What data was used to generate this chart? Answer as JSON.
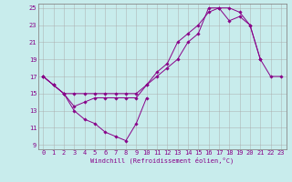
{
  "xlabel": "Windchill (Refroidissement éolien,°C)",
  "bg_color": "#c8ecec",
  "line_color": "#880088",
  "grid_color": "#aaaaaa",
  "xlim": [
    -0.5,
    23.5
  ],
  "ylim": [
    8.5,
    25.5
  ],
  "yticks": [
    9,
    11,
    13,
    15,
    17,
    19,
    21,
    23,
    25
  ],
  "xticks": [
    0,
    1,
    2,
    3,
    4,
    5,
    6,
    7,
    8,
    9,
    10,
    11,
    12,
    13,
    14,
    15,
    16,
    17,
    18,
    19,
    20,
    21,
    22,
    23
  ],
  "curve1_x": [
    0,
    1,
    2,
    3,
    4,
    5,
    6,
    7,
    8,
    9,
    10,
    11,
    12,
    13,
    14,
    15,
    16,
    17,
    18,
    19,
    20,
    21,
    22,
    23
  ],
  "curve1_y": [
    17,
    16,
    15,
    15,
    15,
    15,
    15,
    15,
    15,
    15,
    16,
    17,
    18,
    19,
    21,
    22,
    25,
    25,
    25,
    24.5,
    23,
    19,
    17,
    17
  ],
  "curve2_x": [
    0,
    1,
    2,
    3,
    4,
    5,
    6,
    7,
    8,
    9,
    10,
    11,
    12,
    13,
    14,
    15,
    16,
    17,
    18,
    19,
    20,
    21
  ],
  "curve2_y": [
    17,
    16,
    15,
    13.5,
    14,
    14.5,
    14.5,
    14.5,
    14.5,
    14.5,
    16,
    17.5,
    18.5,
    21,
    22,
    23,
    24.5,
    25,
    23.5,
    24,
    23,
    19
  ],
  "curve3_x": [
    0,
    1,
    2,
    3,
    4,
    5,
    6,
    7,
    8,
    9,
    10
  ],
  "curve3_y": [
    17,
    16,
    15,
    13,
    12,
    11.5,
    10.5,
    10,
    9.5,
    11.5,
    14.5
  ]
}
